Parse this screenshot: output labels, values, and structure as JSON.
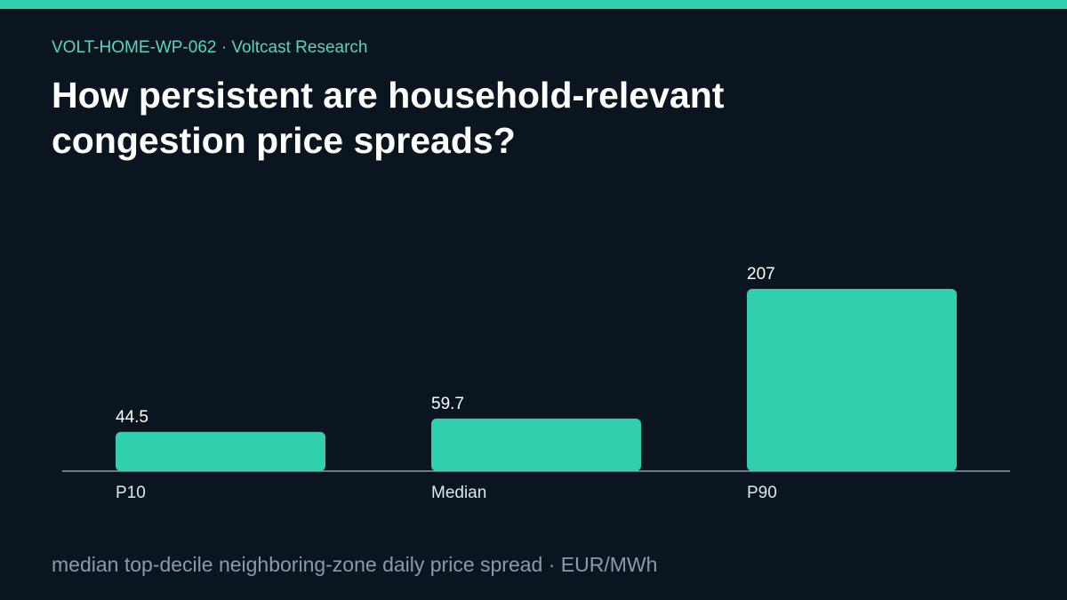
{
  "header": {
    "kicker": "VOLT-HOME-WP-062 · Voltcast Research",
    "title": "How persistent are household-relevant congestion price spreads?"
  },
  "footer": {
    "caption": "median top-decile neighboring-zone daily price spread · EUR/MWh"
  },
  "colors": {
    "accent": "#30cfad",
    "background": "#0a1520",
    "axis": "#8f9cab"
  },
  "chart_data": {
    "type": "bar",
    "categories": [
      "P10",
      "Median",
      "P90"
    ],
    "values": [
      44.5,
      59.7,
      207
    ],
    "value_labels": [
      "44.5",
      "59.7",
      "207"
    ],
    "ylim": [
      0,
      207
    ],
    "grid": false,
    "legend": "none"
  }
}
